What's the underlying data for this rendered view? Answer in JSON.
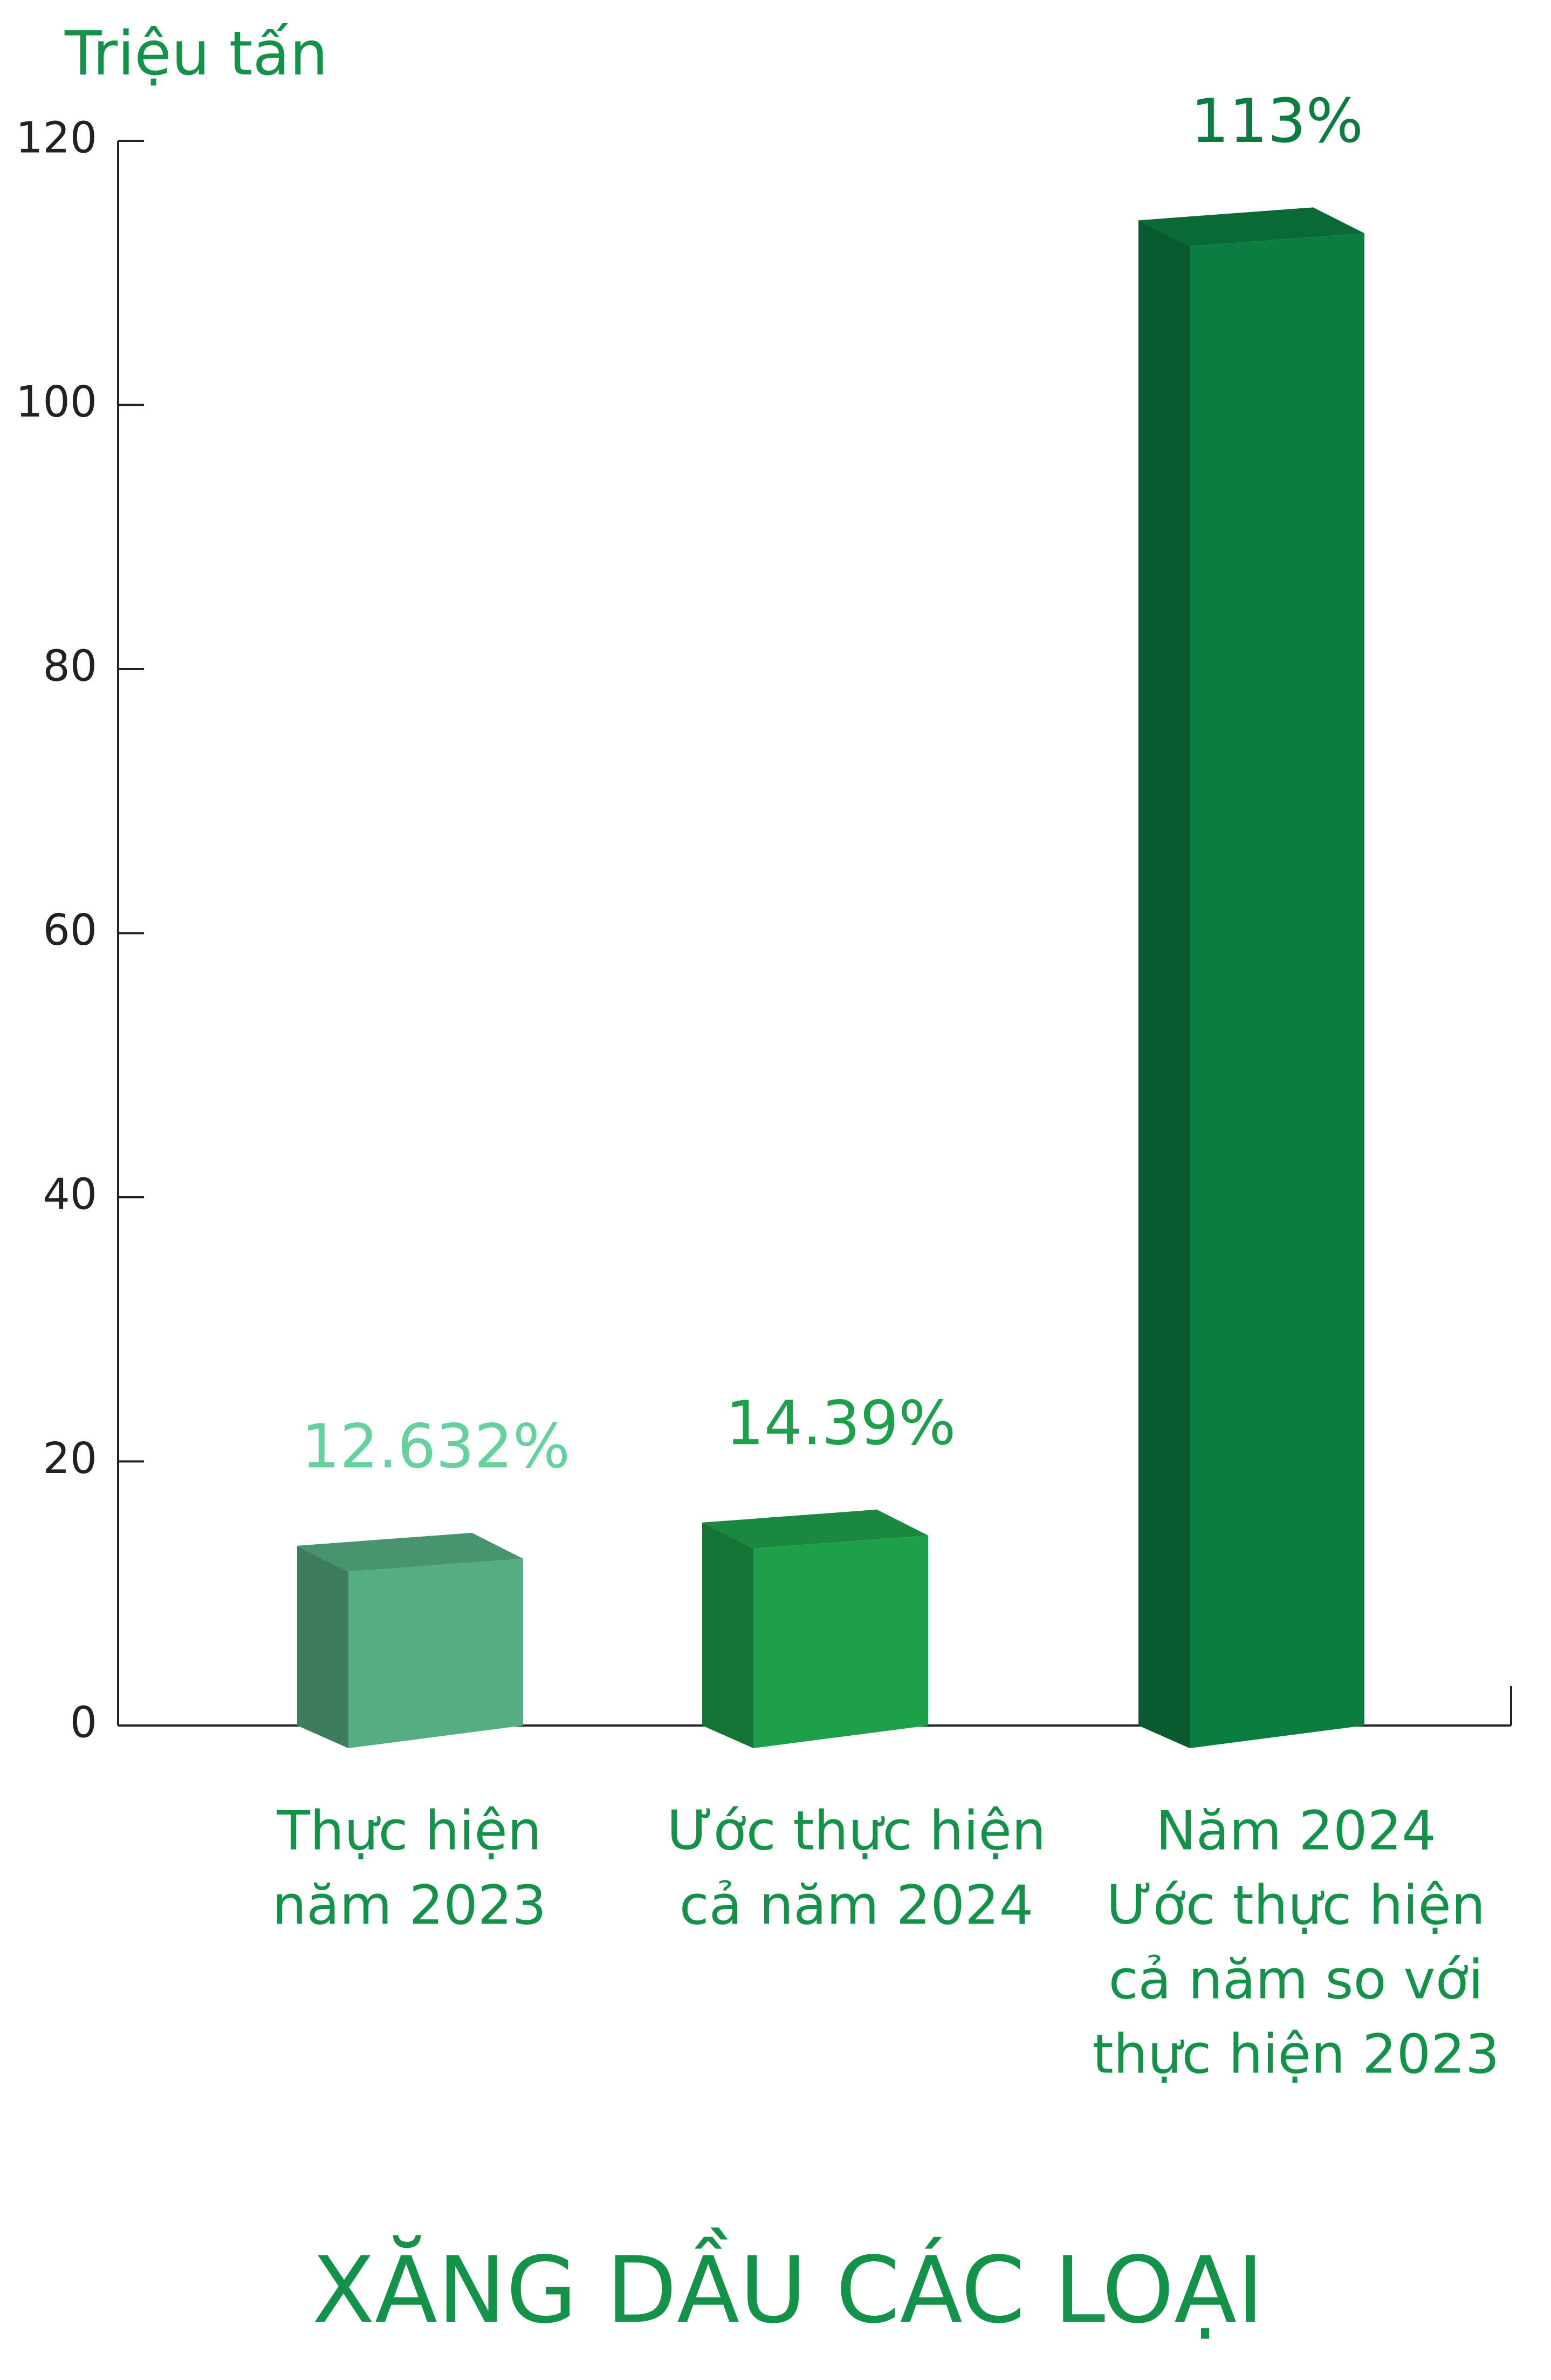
{
  "chart_data": {
    "type": "bar3d",
    "title": "XĂNG DẦU CÁC LOẠI",
    "y_label": "Triệu tấn",
    "categories": [
      [
        "Thực hiện",
        "năm 2023"
      ],
      [
        "Ước thực hiện",
        "cả năm 2024"
      ],
      [
        "Năm 2024",
        "Ước thực hiện",
        "cả năm so với",
        "thực hiện 2023"
      ]
    ],
    "values": [
      12.632,
      14.39,
      113
    ],
    "value_labels": [
      "12.632%",
      "14.39%",
      "113%"
    ],
    "colors": [
      "#55ae82",
      "#1ea04b",
      "#0c7d40"
    ],
    "ylim": [
      0,
      120
    ],
    "yticks": [
      0,
      20,
      40,
      60,
      80,
      100,
      120
    ]
  }
}
